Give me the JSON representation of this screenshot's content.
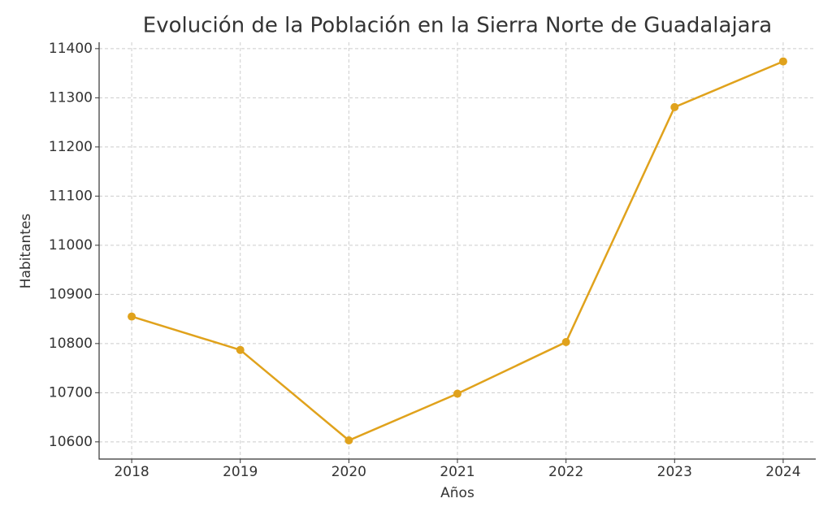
{
  "chart_data": {
    "type": "line",
    "title": "Evolución de la Población en la Sierra Norte de Guadalajara",
    "x_label": "Años",
    "y_label": "Habitantes",
    "x": [
      2018,
      2019,
      2020,
      2021,
      2022,
      2023,
      2024
    ],
    "series": [
      {
        "color": "#e0a21c",
        "values": [
          10855,
          10787,
          10603,
          10698,
          10803,
          11281,
          11374
        ]
      }
    ],
    "xlim": [
      2017.7,
      2024.3
    ],
    "xticks": [
      2018,
      2019,
      2020,
      2021,
      2022,
      2023,
      2024
    ],
    "ylim": [
      10565,
      11413
    ],
    "yticks": [
      10600,
      10700,
      10800,
      10900,
      11000,
      11100,
      11200,
      11300,
      11400
    ],
    "grid": true
  }
}
